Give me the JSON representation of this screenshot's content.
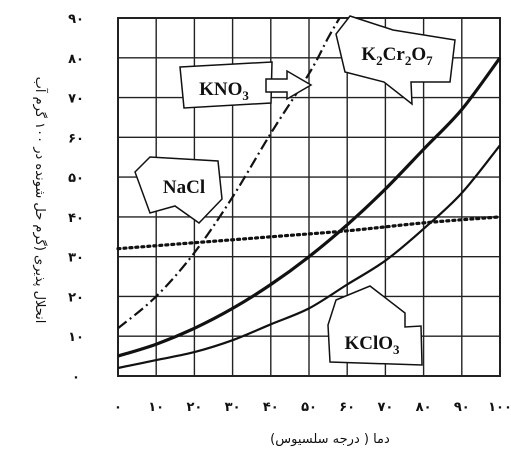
{
  "chart_data": {
    "type": "line",
    "xlabel": "دما ( درجه سلسیوس)",
    "ylabel": "انحلال پذیری (گرم حل شونده در ۱۰۰ گرم آب",
    "xlim": [
      0,
      100
    ],
    "ylim": [
      0,
      90
    ],
    "x_tick_labels": [
      "۰",
      "۱۰",
      "۲۰",
      "۳۰",
      "۴۰",
      "۵۰",
      "۶۰",
      "۷۰",
      "۸۰",
      "۹۰",
      "۱۰۰"
    ],
    "y_tick_labels": [
      "۰",
      "۱۰",
      "۲۰",
      "۳۰",
      "۴۰",
      "۵۰",
      "۶۰",
      "۷۰",
      "۸۰",
      "۹۰"
    ],
    "grid": true,
    "series": [
      {
        "name": "KNO3",
        "label_text": "KNO",
        "label_sub": "3",
        "style": "dash-dot",
        "x": [
          0,
          10,
          20,
          30,
          40,
          50,
          55,
          58
        ],
        "y": [
          12,
          20,
          31,
          45,
          61,
          76,
          85,
          90
        ]
      },
      {
        "name": "K2Cr2O7",
        "label_parts": [
          "K",
          "2",
          "Cr",
          "2",
          "O",
          "7"
        ],
        "style": "solid-thick",
        "x": [
          0,
          10,
          20,
          30,
          40,
          50,
          60,
          70,
          80,
          90,
          100
        ],
        "y": [
          5,
          8,
          12,
          17,
          23,
          30,
          38,
          47,
          57,
          67,
          80
        ]
      },
      {
        "name": "KClO3",
        "label_text": "KClO",
        "label_sub": "3",
        "style": "solid-thin",
        "x": [
          0,
          10,
          20,
          30,
          40,
          50,
          60,
          70,
          80,
          90,
          100
        ],
        "y": [
          2,
          4,
          6,
          9,
          13,
          17,
          23,
          29,
          37,
          46,
          58
        ]
      },
      {
        "name": "NaCl",
        "label_text": "NaCl",
        "style": "dotted",
        "x": [
          0,
          20,
          40,
          60,
          80,
          100
        ],
        "y": [
          32,
          33.5,
          35,
          36.5,
          38.5,
          40
        ]
      }
    ]
  }
}
